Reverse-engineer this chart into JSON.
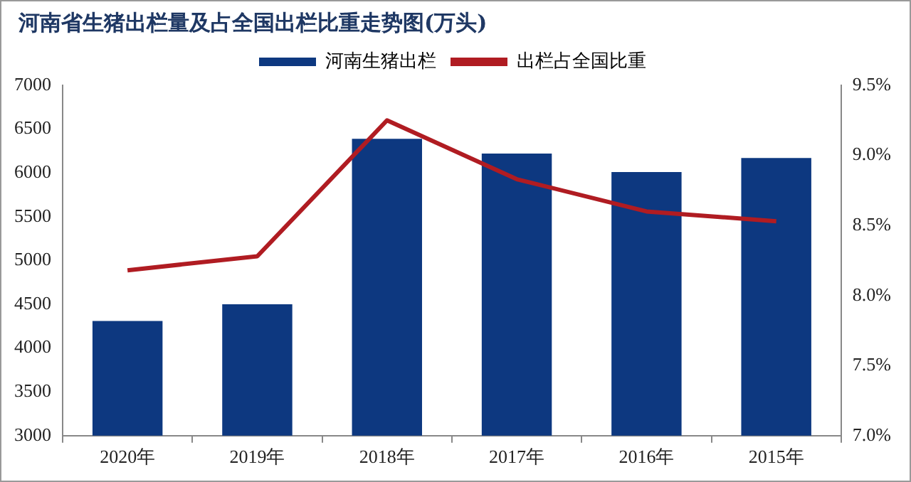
{
  "chart_data": {
    "type": "bar",
    "title": "河南省生猪出栏量及占全国出栏比重走势图(万头)",
    "categories": [
      "2020年",
      "2019年",
      "2018年",
      "2017年",
      "2016年",
      "2015年"
    ],
    "series": [
      {
        "name": "河南生猪出栏",
        "color": "#0d3880",
        "values": [
          4310,
          4500,
          6390,
          6220,
          6010,
          6170
        ]
      },
      {
        "name": "出栏占全国比重",
        "type": "line",
        "axis": "y2",
        "color": "#b01c22",
        "values": [
          8.18,
          8.28,
          9.25,
          8.83,
          8.6,
          8.53
        ]
      }
    ],
    "ylim": [
      3000,
      7000
    ],
    "yticks": [
      3000,
      3500,
      4000,
      4500,
      5000,
      5500,
      6000,
      6500,
      7000
    ],
    "y2lim": [
      7.0,
      9.5
    ],
    "y2ticks": [
      {
        "value": 7.0,
        "label": "7.0%"
      },
      {
        "value": 7.5,
        "label": "7.5%"
      },
      {
        "value": 8.0,
        "label": "8.0%"
      },
      {
        "value": 8.5,
        "label": "8.5%"
      },
      {
        "value": 9.0,
        "label": "9.0%"
      },
      {
        "value": 9.5,
        "label": "9.5%"
      }
    ],
    "grid": false,
    "legend": "top",
    "marker": "none"
  }
}
